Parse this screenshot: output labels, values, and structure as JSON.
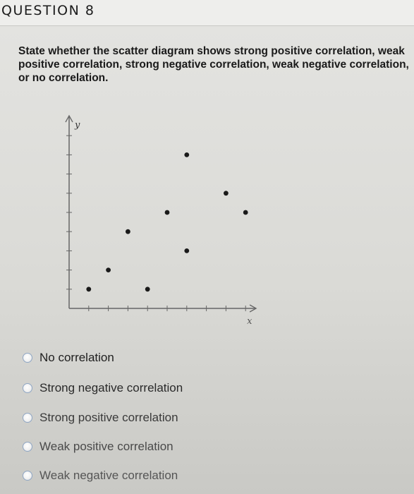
{
  "header": {
    "title": "QUESTION 8"
  },
  "question": {
    "text": "State whether the scatter diagram shows strong positive correlation, weak positive correlation, strong negative correlation, weak negative correlation, or no correlation."
  },
  "chart_data": {
    "type": "scatter",
    "xlabel": "x",
    "ylabel": "y",
    "xlim": [
      0,
      9.5
    ],
    "ylim": [
      0,
      10
    ],
    "grid": false,
    "points": [
      {
        "x": 1,
        "y": 1
      },
      {
        "x": 2,
        "y": 2
      },
      {
        "x": 3,
        "y": 4
      },
      {
        "x": 4,
        "y": 1
      },
      {
        "x": 5,
        "y": 5
      },
      {
        "x": 6,
        "y": 3
      },
      {
        "x": 6,
        "y": 8
      },
      {
        "x": 8,
        "y": 6
      },
      {
        "x": 9,
        "y": 5
      }
    ]
  },
  "options": [
    {
      "label": "No correlation",
      "color": "#1e1e1e"
    },
    {
      "label": "Strong negative correlation",
      "color": "#2a2a2a"
    },
    {
      "label": "Strong positive correlation",
      "color": "#3a3a3a"
    },
    {
      "label": "Weak positive correlation",
      "color": "#4a4a4a"
    },
    {
      "label": "Weak negative correlation",
      "color": "#555555"
    }
  ]
}
